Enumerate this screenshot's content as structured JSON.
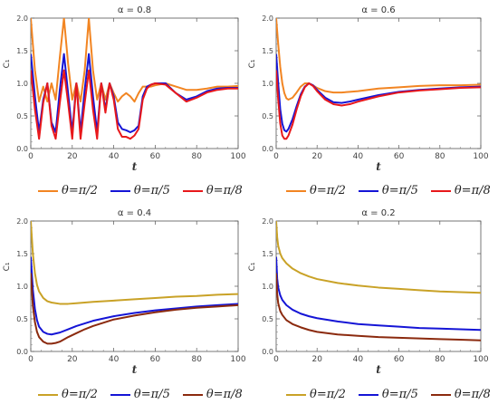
{
  "chart_data": [
    {
      "type": "line",
      "title": "α = 0.8",
      "xlabel": "t",
      "ylabel": "C₁",
      "xlim": [
        0,
        100
      ],
      "ylim": [
        0,
        2.0
      ],
      "x_ticks": [
        "0",
        "20",
        "40",
        "60",
        "80",
        "100"
      ],
      "y_ticks": [
        "0.0",
        "0.5",
        "1.0",
        "1.5",
        "2.0"
      ],
      "grid": false,
      "legend_position": "bottom",
      "series": [
        {
          "name": "θ=π/2",
          "color": "#F28522",
          "x": [
            0,
            2,
            4,
            6,
            8,
            10,
            12,
            14,
            16,
            18,
            20,
            22,
            24,
            26,
            28,
            30,
            32,
            34,
            36,
            38,
            40,
            42,
            44,
            46,
            48,
            50,
            52,
            54,
            56,
            58,
            60,
            65,
            70,
            75,
            80,
            85,
            90,
            95,
            100
          ],
          "y": [
            2.0,
            1.2,
            0.72,
            0.95,
            0.72,
            1.0,
            0.75,
            1.4,
            2.0,
            1.3,
            0.75,
            1.0,
            0.72,
            1.2,
            2.0,
            1.2,
            0.75,
            1.0,
            0.75,
            1.0,
            0.85,
            0.72,
            0.8,
            0.85,
            0.8,
            0.72,
            0.85,
            0.95,
            0.95,
            0.95,
            0.97,
            1.0,
            0.95,
            0.9,
            0.9,
            0.92,
            0.95,
            0.95,
            0.96
          ]
        },
        {
          "name": "θ=π/5",
          "color": "#1515D6",
          "x": [
            0,
            2,
            4,
            6,
            8,
            10,
            12,
            14,
            16,
            18,
            20,
            22,
            24,
            26,
            28,
            30,
            32,
            34,
            36,
            38,
            40,
            42,
            44,
            46,
            48,
            50,
            52,
            54,
            56,
            58,
            60,
            65,
            70,
            75,
            80,
            85,
            90,
            95,
            100
          ],
          "y": [
            1.45,
            0.8,
            0.25,
            0.75,
            1.0,
            0.4,
            0.25,
            0.9,
            1.45,
            0.85,
            0.25,
            1.0,
            0.25,
            0.9,
            1.45,
            0.8,
            0.25,
            1.0,
            0.6,
            1.0,
            0.8,
            0.4,
            0.3,
            0.28,
            0.25,
            0.28,
            0.35,
            0.8,
            0.95,
            0.98,
            1.0,
            1.0,
            0.85,
            0.75,
            0.8,
            0.88,
            0.92,
            0.93,
            0.93
          ]
        },
        {
          "name": "θ=π/8",
          "color": "#E8181B",
          "x": [
            0,
            2,
            4,
            6,
            8,
            10,
            12,
            14,
            16,
            18,
            20,
            22,
            24,
            26,
            28,
            30,
            32,
            34,
            36,
            38,
            40,
            42,
            44,
            46,
            48,
            50,
            52,
            54,
            56,
            58,
            60,
            65,
            70,
            75,
            80,
            85,
            90,
            95,
            100
          ],
          "y": [
            1.2,
            0.6,
            0.15,
            0.7,
            1.0,
            0.35,
            0.15,
            0.7,
            1.2,
            0.7,
            0.15,
            1.0,
            0.15,
            0.7,
            1.2,
            0.6,
            0.15,
            1.0,
            0.55,
            1.0,
            0.75,
            0.3,
            0.18,
            0.18,
            0.15,
            0.2,
            0.3,
            0.75,
            0.92,
            0.98,
            1.0,
            0.98,
            0.85,
            0.72,
            0.78,
            0.86,
            0.9,
            0.92,
            0.92
          ]
        }
      ]
    },
    {
      "type": "line",
      "title": "α = 0.6",
      "xlabel": "t",
      "ylabel": "C₁",
      "xlim": [
        0,
        100
      ],
      "ylim": [
        0,
        2.0
      ],
      "x_ticks": [
        "0",
        "20",
        "40",
        "60",
        "80",
        "100"
      ],
      "y_ticks": [
        "0.0",
        "0.5",
        "1.0",
        "1.5",
        "2.0"
      ],
      "grid": false,
      "legend_position": "bottom",
      "series": [
        {
          "name": "θ=π/2",
          "color": "#F28522",
          "x": [
            0,
            1,
            2,
            3,
            4,
            5,
            6,
            8,
            10,
            12,
            14,
            16,
            18,
            20,
            24,
            28,
            32,
            36,
            40,
            50,
            60,
            70,
            80,
            90,
            100
          ],
          "y": [
            2.0,
            1.6,
            1.25,
            1.0,
            0.85,
            0.77,
            0.75,
            0.78,
            0.86,
            0.95,
            1.0,
            1.0,
            0.97,
            0.93,
            0.88,
            0.86,
            0.86,
            0.87,
            0.88,
            0.92,
            0.94,
            0.96,
            0.97,
            0.97,
            0.98
          ]
        },
        {
          "name": "θ=π/5",
          "color": "#1515D6",
          "x": [
            0,
            1,
            2,
            3,
            4,
            5,
            6,
            8,
            10,
            12,
            14,
            16,
            18,
            20,
            24,
            28,
            32,
            36,
            40,
            50,
            60,
            70,
            80,
            90,
            100
          ],
          "y": [
            1.45,
            1.0,
            0.6,
            0.38,
            0.28,
            0.26,
            0.3,
            0.45,
            0.65,
            0.83,
            0.95,
            1.0,
            0.97,
            0.9,
            0.78,
            0.71,
            0.7,
            0.72,
            0.75,
            0.82,
            0.87,
            0.9,
            0.92,
            0.94,
            0.95
          ]
        },
        {
          "name": "θ=π/8",
          "color": "#E8181B",
          "x": [
            0,
            1,
            2,
            3,
            4,
            5,
            6,
            8,
            10,
            12,
            14,
            16,
            18,
            20,
            24,
            28,
            32,
            36,
            40,
            50,
            60,
            70,
            80,
            90,
            100
          ],
          "y": [
            1.2,
            0.75,
            0.38,
            0.2,
            0.15,
            0.15,
            0.2,
            0.37,
            0.6,
            0.8,
            0.94,
            1.0,
            0.96,
            0.88,
            0.75,
            0.68,
            0.66,
            0.68,
            0.72,
            0.8,
            0.86,
            0.89,
            0.91,
            0.93,
            0.94
          ]
        }
      ]
    },
    {
      "type": "line",
      "title": "α = 0.4",
      "xlabel": "t",
      "ylabel": "C₁",
      "xlim": [
        0,
        100
      ],
      "ylim": [
        0,
        2.0
      ],
      "x_ticks": [
        "0",
        "20",
        "40",
        "60",
        "80",
        "100"
      ],
      "y_ticks": [
        "0.0",
        "0.5",
        "1.0",
        "1.5",
        "2.0"
      ],
      "grid": false,
      "legend_position": "bottom",
      "series": [
        {
          "name": "θ=π/2",
          "color": "#C9A227",
          "x": [
            0,
            1,
            2,
            3,
            4,
            6,
            8,
            10,
            14,
            18,
            22,
            26,
            30,
            40,
            50,
            60,
            70,
            80,
            90,
            100
          ],
          "y": [
            2.0,
            1.5,
            1.2,
            1.02,
            0.92,
            0.82,
            0.77,
            0.75,
            0.73,
            0.73,
            0.74,
            0.75,
            0.76,
            0.78,
            0.8,
            0.82,
            0.84,
            0.85,
            0.87,
            0.88
          ]
        },
        {
          "name": "θ=π/5",
          "color": "#1515D6",
          "x": [
            0,
            1,
            2,
            3,
            4,
            6,
            8,
            10,
            14,
            18,
            22,
            26,
            30,
            40,
            50,
            60,
            70,
            80,
            90,
            100
          ],
          "y": [
            1.45,
            0.95,
            0.65,
            0.48,
            0.38,
            0.3,
            0.27,
            0.26,
            0.29,
            0.34,
            0.39,
            0.43,
            0.47,
            0.54,
            0.59,
            0.63,
            0.66,
            0.69,
            0.71,
            0.73
          ]
        },
        {
          "name": "θ=π/8",
          "color": "#8B2A0E",
          "x": [
            0,
            1,
            2,
            3,
            4,
            6,
            8,
            10,
            12,
            14,
            18,
            22,
            26,
            30,
            40,
            50,
            60,
            70,
            80,
            90,
            100
          ],
          "y": [
            1.2,
            0.7,
            0.45,
            0.3,
            0.22,
            0.15,
            0.12,
            0.12,
            0.13,
            0.15,
            0.22,
            0.28,
            0.34,
            0.39,
            0.49,
            0.55,
            0.6,
            0.64,
            0.67,
            0.69,
            0.71
          ]
        }
      ]
    },
    {
      "type": "line",
      "title": "α = 0.2",
      "xlabel": "t",
      "ylabel": "C₁",
      "xlim": [
        0,
        100
      ],
      "ylim": [
        0,
        2.0
      ],
      "x_ticks": [
        "0",
        "20",
        "40",
        "60",
        "80",
        "100"
      ],
      "y_ticks": [
        "0.0",
        "0.5",
        "1.0",
        "1.5",
        "2.0"
      ],
      "grid": false,
      "legend_position": "bottom",
      "series": [
        {
          "name": "θ=π/2",
          "color": "#C9A227",
          "x": [
            0,
            0.5,
            1,
            2,
            3,
            5,
            8,
            12,
            16,
            20,
            30,
            40,
            50,
            60,
            70,
            80,
            90,
            100
          ],
          "y": [
            2.0,
            1.75,
            1.62,
            1.5,
            1.43,
            1.35,
            1.27,
            1.2,
            1.15,
            1.11,
            1.05,
            1.01,
            0.98,
            0.96,
            0.94,
            0.92,
            0.91,
            0.9
          ]
        },
        {
          "name": "θ=π/5",
          "color": "#1515D6",
          "x": [
            0,
            0.5,
            1,
            2,
            3,
            5,
            8,
            12,
            16,
            20,
            30,
            40,
            50,
            60,
            70,
            80,
            90,
            100
          ],
          "y": [
            1.45,
            1.12,
            0.98,
            0.86,
            0.79,
            0.71,
            0.64,
            0.58,
            0.54,
            0.51,
            0.46,
            0.42,
            0.4,
            0.38,
            0.36,
            0.35,
            0.34,
            0.33
          ]
        },
        {
          "name": "θ=π/8",
          "color": "#8B2A0E",
          "x": [
            0,
            0.5,
            1,
            2,
            3,
            5,
            8,
            12,
            16,
            20,
            30,
            40,
            50,
            60,
            70,
            80,
            90,
            100
          ],
          "y": [
            1.2,
            0.88,
            0.74,
            0.62,
            0.56,
            0.48,
            0.42,
            0.37,
            0.33,
            0.3,
            0.26,
            0.24,
            0.22,
            0.21,
            0.2,
            0.19,
            0.18,
            0.17
          ]
        }
      ]
    }
  ]
}
